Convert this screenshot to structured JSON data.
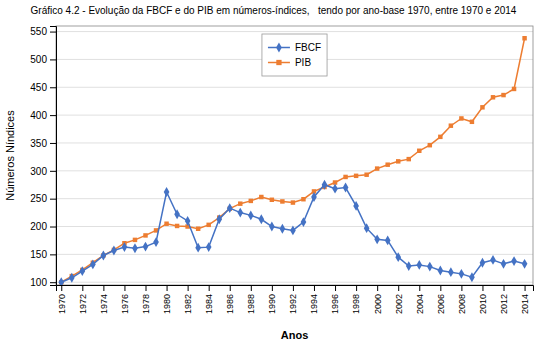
{
  "chart_data": {
    "type": "line",
    "title": "Gráfico 4.2 - Evolução da FBCF e do PIB em números-índices,   tendo por ano-base 1970, entre 1970 e 2014",
    "x_label": "Anos",
    "y_label": "Números Níndices",
    "x": [
      1970,
      1971,
      1972,
      1973,
      1974,
      1975,
      1976,
      1977,
      1978,
      1979,
      1980,
      1981,
      1982,
      1983,
      1984,
      1985,
      1986,
      1987,
      1988,
      1989,
      1990,
      1991,
      1992,
      1993,
      1994,
      1995,
      1996,
      1997,
      1998,
      1999,
      2000,
      2001,
      2002,
      2003,
      2004,
      2005,
      2006,
      2007,
      2008,
      2009,
      2010,
      2011,
      2012,
      2013,
      2014
    ],
    "series": [
      {
        "name": "FBCF",
        "color": "#4472c4",
        "marker": "diamond",
        "values": [
          100,
          108,
          120,
          132,
          148,
          157,
          163,
          161,
          164,
          172,
          262,
          222,
          210,
          162,
          163,
          213,
          233,
          225,
          220,
          213,
          200,
          196,
          193,
          208,
          253,
          275,
          268,
          270,
          237,
          197,
          177,
          175,
          145,
          129,
          131,
          128,
          121,
          118,
          115,
          109,
          135,
          140,
          133,
          138,
          133
        ]
      },
      {
        "name": "PIB",
        "color": "#ed7d31",
        "marker": "square",
        "values": [
          100,
          111,
          122,
          135,
          148,
          158,
          170,
          176,
          184,
          193,
          205,
          201,
          200,
          196,
          203,
          216,
          232,
          241,
          246,
          253,
          248,
          245,
          243,
          249,
          263,
          271,
          279,
          289,
          291,
          293,
          304,
          311,
          317,
          321,
          336,
          346,
          361,
          381,
          394,
          388,
          414,
          432,
          436,
          447,
          538
        ]
      }
    ],
    "xlim": [
      1969.5,
      2014.8
    ],
    "xticks": [
      1970,
      1972,
      1974,
      1976,
      1978,
      1980,
      1982,
      1984,
      1986,
      1988,
      1990,
      1992,
      1994,
      1996,
      1998,
      2000,
      2002,
      2004,
      2006,
      2008,
      2010,
      2012,
      2014
    ],
    "ylim": [
      95,
      560
    ],
    "yticks": [
      100,
      150,
      200,
      250,
      300,
      350,
      400,
      450,
      500,
      550
    ],
    "grid": true,
    "legend": "upper center"
  }
}
